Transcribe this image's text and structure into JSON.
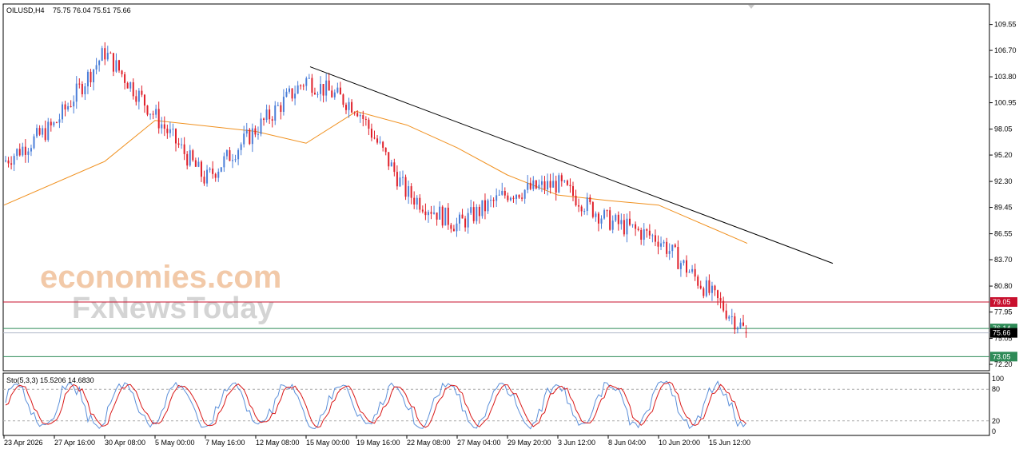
{
  "header": {
    "symbol": "OILUSD,H4",
    "ohlc": "75.75 76.04 75.51 75.66"
  },
  "watermark": {
    "brand1": "economies.com",
    "brand2": "FxNewsToday"
  },
  "price_axis": {
    "ticks": [
      "109.55",
      "106.70",
      "103.80",
      "100.95",
      "98.05",
      "95.20",
      "92.30",
      "89.45",
      "86.55",
      "83.70",
      "80.80",
      "77.95",
      "75.05",
      "72.20"
    ]
  },
  "time_axis": {
    "ticks": [
      "23 Apr 2026",
      "27 Apr 16:00",
      "30 Apr 08:00",
      "5 May 00:00",
      "7 May 16:00",
      "12 May 08:00",
      "15 May 00:00",
      "19 May 16:00",
      "22 May 08:00",
      "27 May 04:00",
      "29 May 20:00",
      "3 Jun 12:00",
      "8 Jun 04:00",
      "10 Jun 20:00",
      "15 Jun 12:00"
    ]
  },
  "levels": [
    {
      "label": "79.05",
      "value": 79.05,
      "color": "#c8102e"
    },
    {
      "label": "76.14",
      "value": 76.14,
      "color": "#2e8b57"
    },
    {
      "label": "73.05",
      "value": 73.05,
      "color": "#2e8b57"
    }
  ],
  "current_price": {
    "label": "75.66",
    "value": 75.66
  },
  "indicator": {
    "label": "Sto(5,3,3) 15.5206 14.6830",
    "ticks": [
      "100",
      "80",
      "20",
      "0"
    ],
    "levels": [
      80,
      20
    ]
  },
  "colors": {
    "bull": "#4a7ed8",
    "bear": "#e0202a",
    "ma": "#f0901e",
    "trend": "#000000",
    "stoch_main": "#5b8fd9",
    "stoch_signal": "#d91a1a"
  },
  "chart_data": {
    "type": "candlestick",
    "symbol": "OILUSD",
    "timeframe": "H4",
    "ylim": [
      71.5,
      111.8
    ],
    "anchors": [
      {
        "x": "23 Apr 2026",
        "close": 94.5
      },
      {
        "x": "27 Apr 16:00",
        "close": 98.5
      },
      {
        "x": "30 Apr 08:00",
        "close": 106.5
      },
      {
        "x": "5 May 00:00",
        "close": 99.5
      },
      {
        "x": "7 May 16:00",
        "close": 92.5
      },
      {
        "x": "12 May 08:00",
        "close": 98.0
      },
      {
        "x": "15 May 00:00",
        "close": 103.5
      },
      {
        "x": "19 May 16:00",
        "close": 100.5
      },
      {
        "x": "22 May 08:00",
        "close": 91.0
      },
      {
        "x": "27 May 04:00",
        "close": 87.5
      },
      {
        "x": "29 May 20:00",
        "close": 91.0
      },
      {
        "x": "3 Jun 12:00",
        "close": 92.0
      },
      {
        "x": "8 Jun 04:00",
        "close": 88.0
      },
      {
        "x": "10 Jun 20:00",
        "close": 86.0
      },
      {
        "x": "15 Jun 12:00",
        "close": 75.66
      }
    ],
    "last_bar": {
      "open": 75.75,
      "high": 76.04,
      "low": 75.51,
      "close": 75.66
    },
    "trendline": [
      {
        "x": "15 May 00:00",
        "y": 104.9
      },
      {
        "x": "15 Jun 12:00",
        "y": 83.3
      }
    ],
    "moving_average": [
      {
        "x": "23 Apr 2026",
        "y": 89.7
      },
      {
        "x": "30 Apr 08:00",
        "y": 94.5
      },
      {
        "x": "5 May 00:00",
        "y": 99.0
      },
      {
        "x": "12 May 08:00",
        "y": 97.8
      },
      {
        "x": "15 May 00:00",
        "y": 96.5
      },
      {
        "x": "19 May 16:00",
        "y": 100.0
      },
      {
        "x": "22 May 08:00",
        "y": 98.5
      },
      {
        "x": "27 May 04:00",
        "y": 96.0
      },
      {
        "x": "29 May 20:00",
        "y": 93.0
      },
      {
        "x": "3 Jun 12:00",
        "y": 90.8
      },
      {
        "x": "8 Jun 04:00",
        "y": 90.2
      },
      {
        "x": "10 Jun 20:00",
        "y": 89.7
      },
      {
        "x": "15 Jun 12:00",
        "y": 85.5
      }
    ],
    "stochastic": {
      "main": 15.5206,
      "signal": 14.683
    }
  }
}
